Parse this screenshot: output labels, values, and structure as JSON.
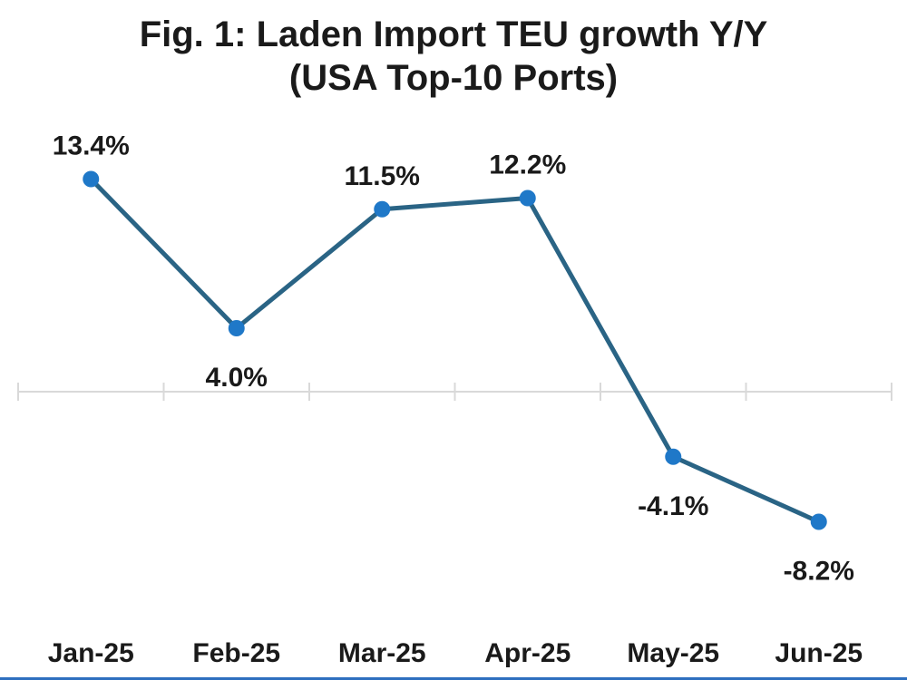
{
  "chart_data": {
    "type": "line",
    "title": "Fig. 1: Laden Import TEU growth Y/Y",
    "subtitle": "(USA Top-10 Ports)",
    "xlabel": "",
    "ylabel": "",
    "categories": [
      "Jan-25",
      "Feb-25",
      "Mar-25",
      "Apr-25",
      "May-25",
      "Jun-25"
    ],
    "series": [
      {
        "values": [
          13.4,
          4.0,
          11.5,
          12.2,
          -4.1,
          -8.2
        ],
        "labels": [
          "13.4%",
          "4.0%",
          "11.5%",
          "12.2%",
          "-4.1%",
          "-8.2%"
        ]
      }
    ],
    "ylim": [
      -12,
      16
    ],
    "grid": false,
    "legend": "none",
    "colors": {
      "line": "#2a6485",
      "marker": "#1f78c8",
      "axis": "#d9d9d9",
      "frame_border": "#2e6fbf"
    }
  }
}
